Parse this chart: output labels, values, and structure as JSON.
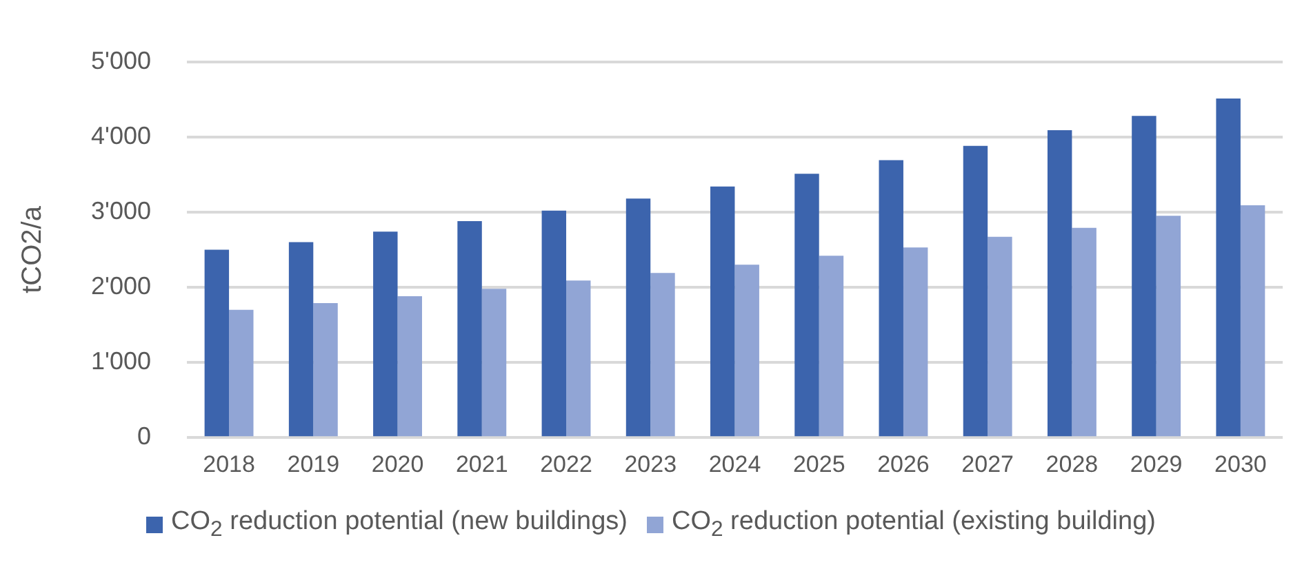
{
  "chart_data": {
    "type": "bar",
    "ylabel": "tCO2/a",
    "categories": [
      "2018",
      "2019",
      "2020",
      "2021",
      "2022",
      "2023",
      "2024",
      "2025",
      "2026",
      "2027",
      "2028",
      "2029",
      "2030"
    ],
    "series": [
      {
        "name": "CO$_{2}$ reduction potential (new buildings)",
        "color": "#3c64ad",
        "values": [
          2500,
          2600,
          2740,
          2880,
          3020,
          3180,
          3340,
          3510,
          3690,
          3880,
          4090,
          4280,
          4510
        ]
      },
      {
        "name": "CO$_{2}$ reduction potential (existing building)",
        "color": "#91a5d5",
        "values": [
          1700,
          1790,
          1880,
          1980,
          2090,
          2190,
          2300,
          2420,
          2530,
          2670,
          2790,
          2950,
          3090
        ]
      }
    ],
    "ylim": [
      0,
      5000
    ],
    "yticks": [
      0,
      {
        "value": 1000,
        "label": "1'000"
      },
      {
        "value": 2000,
        "label": "2'000"
      },
      {
        "value": 3000,
        "label": "3'000"
      },
      {
        "value": 4000,
        "label": "4'000"
      },
      {
        "value": 5000,
        "label": "5'000"
      }
    ],
    "grid": "y",
    "legend": "bottom"
  }
}
